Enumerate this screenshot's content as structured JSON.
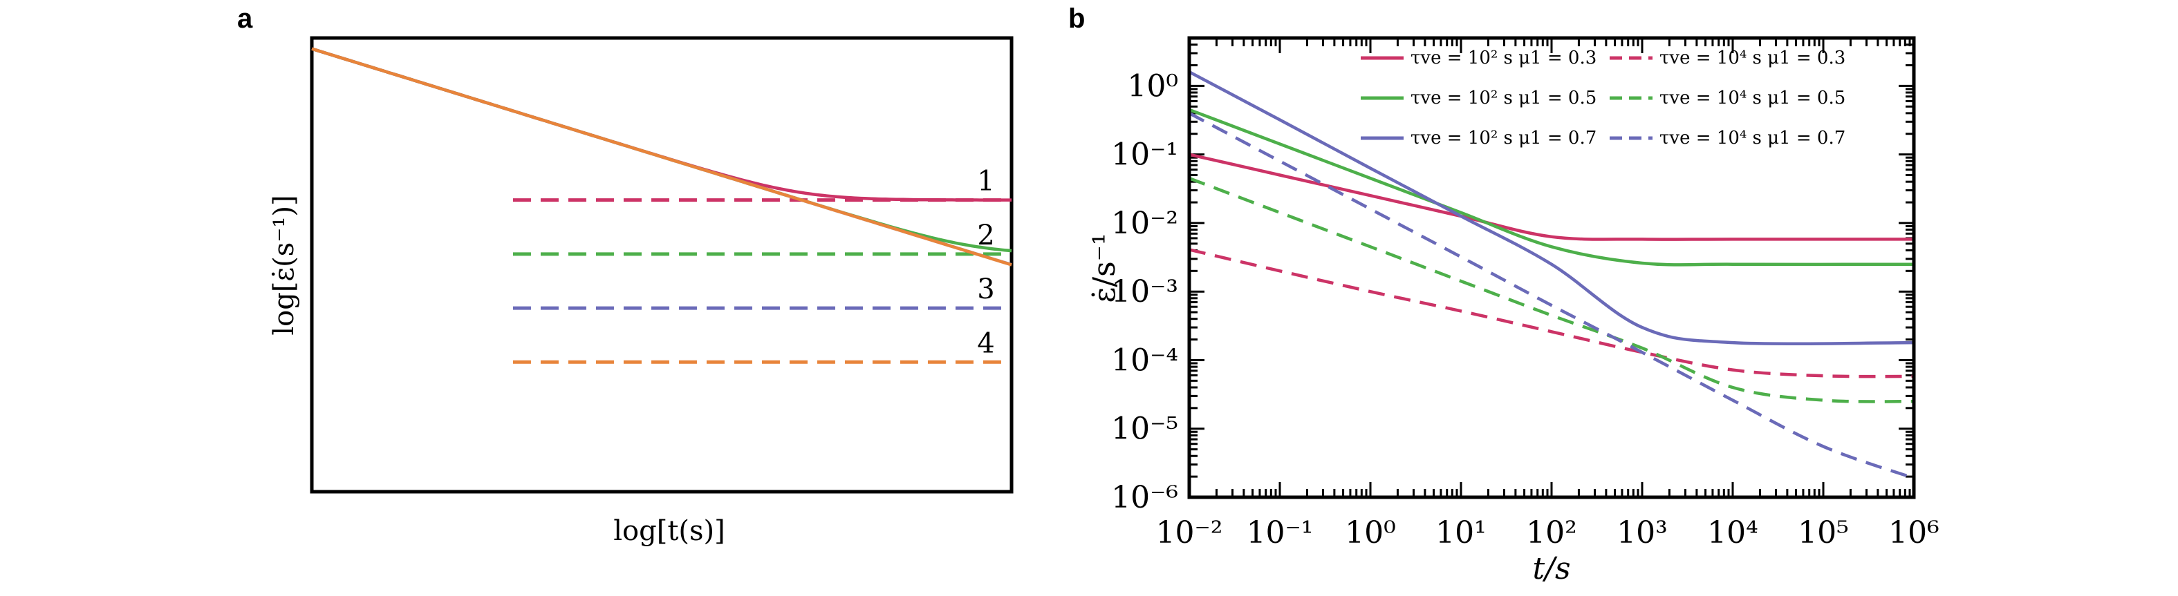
{
  "chart_data": [
    {
      "panel_label": "a",
      "type": "line",
      "xlabel": "log[t(s)]",
      "ylabel": "log[ε̇(s⁻¹)]",
      "xscale": "log",
      "yscale": "log",
      "xticks": "none",
      "yticks": "none",
      "xlim": [
        -2,
        6
      ],
      "ylim": [
        -7.4,
        1
      ],
      "grid": false,
      "legend": "none",
      "curves": [
        {
          "label": "1",
          "color": "#cc3366",
          "plateau": -2
        },
        {
          "label": "2",
          "color": "#4daf4a",
          "plateau": -3
        },
        {
          "label": "3",
          "color": "#6a6ab8",
          "plateau": -4
        },
        {
          "label": "4",
          "color": "#e8843a",
          "plateau": -5
        }
      ],
      "dashed_asymptote_start_x": 0.3,
      "solid_start": [
        -2,
        0.8
      ],
      "solid_initial_slope": -0.5
    },
    {
      "panel_label": "b",
      "type": "line",
      "xlabel": "t/s",
      "ylabel": "ε̇/s⁻¹",
      "xscale": "log",
      "yscale": "log",
      "xlim": [
        0.01,
        1000000
      ],
      "ylim": [
        1e-06,
        5
      ],
      "xticks": [
        {
          "value": 0.01,
          "label": "10⁻²"
        },
        {
          "value": 0.1,
          "label": "10⁻¹"
        },
        {
          "value": 1,
          "label": "10⁰"
        },
        {
          "value": 10,
          "label": "10¹"
        },
        {
          "value": 100,
          "label": "10²"
        },
        {
          "value": 1000,
          "label": "10³"
        },
        {
          "value": 10000,
          "label": "10⁴"
        },
        {
          "value": 100000,
          "label": "10⁵"
        },
        {
          "value": 1000000,
          "label": "10⁶"
        }
      ],
      "yticks": [
        {
          "value": 1,
          "label": "10⁰"
        },
        {
          "value": 0.1,
          "label": "10⁻¹"
        },
        {
          "value": 0.01,
          "label": "10⁻²"
        },
        {
          "value": 0.001,
          "label": "10⁻³"
        },
        {
          "value": 0.0001,
          "label": "10⁻⁴"
        },
        {
          "value": 1e-05,
          "label": "10⁻⁵"
        },
        {
          "value": 1e-06,
          "label": "10⁻⁶"
        }
      ],
      "grid": false,
      "legend": "top-right",
      "series": [
        {
          "name": "τve = 10² s μ1 = 0.3",
          "tau": "10² s",
          "mu": "0.3",
          "color": "#cc3366",
          "dash": false,
          "x": [
            0.01,
            0.1,
            1,
            10,
            100,
            1000,
            10000,
            1000000
          ],
          "y": [
            0.1,
            0.0501,
            0.0251,
            0.0126,
            0.0063,
            0.0058,
            0.0058,
            0.0058
          ]
        },
        {
          "name": "τve = 10⁴ s μ1 = 0.3",
          "tau": "10⁴ s",
          "mu": "0.3",
          "color": "#cc3366",
          "dash": true,
          "x": [
            0.01,
            0.1,
            1,
            10,
            100,
            1000,
            10000,
            100000,
            1000000
          ],
          "y": [
            0.0041,
            0.002,
            0.001,
            0.00052,
            0.00026,
            0.00013,
            7.2e-05,
            5.9e-05,
            5.8e-05
          ]
        },
        {
          "name": "τve = 10² s μ1 = 0.5",
          "tau": "10² s",
          "mu": "0.5",
          "color": "#4daf4a",
          "dash": false,
          "x": [
            0.01,
            0.1,
            1,
            10,
            100,
            1000,
            10000,
            1000000
          ],
          "y": [
            0.45,
            0.142,
            0.045,
            0.0142,
            0.0045,
            0.0026,
            0.0025,
            0.0025
          ]
        },
        {
          "name": "τve = 10⁴ s μ1 = 0.5",
          "tau": "10⁴ s",
          "mu": "0.5",
          "color": "#4daf4a",
          "dash": true,
          "x": [
            0.01,
            0.1,
            1,
            10,
            100,
            1000,
            10000,
            100000,
            1000000
          ],
          "y": [
            0.045,
            0.0142,
            0.0045,
            0.00142,
            0.00045,
            0.00015,
            4e-05,
            2.6e-05,
            2.5e-05
          ]
        },
        {
          "name": "τve = 10² s μ1 = 0.7",
          "tau": "10² s",
          "mu": "0.7",
          "color": "#6a6ab8",
          "dash": false,
          "x": [
            0.01,
            0.1,
            1,
            10,
            100,
            1000,
            10000,
            1000000
          ],
          "y": [
            1.6,
            0.32,
            0.063,
            0.0126,
            0.0025,
            0.0003,
            0.00018,
            0.00018
          ]
        },
        {
          "name": "τve = 10⁴ s μ1 = 0.7",
          "tau": "10⁴ s",
          "mu": "0.7",
          "color": "#6a6ab8",
          "dash": true,
          "x": [
            0.01,
            0.1,
            1,
            10,
            100,
            1000,
            10000,
            100000,
            1000000
          ],
          "y": [
            0.4,
            0.08,
            0.016,
            0.0032,
            0.00063,
            0.00013,
            2.6e-05,
            5.5e-06,
            1.9e-06
          ]
        }
      ]
    }
  ]
}
